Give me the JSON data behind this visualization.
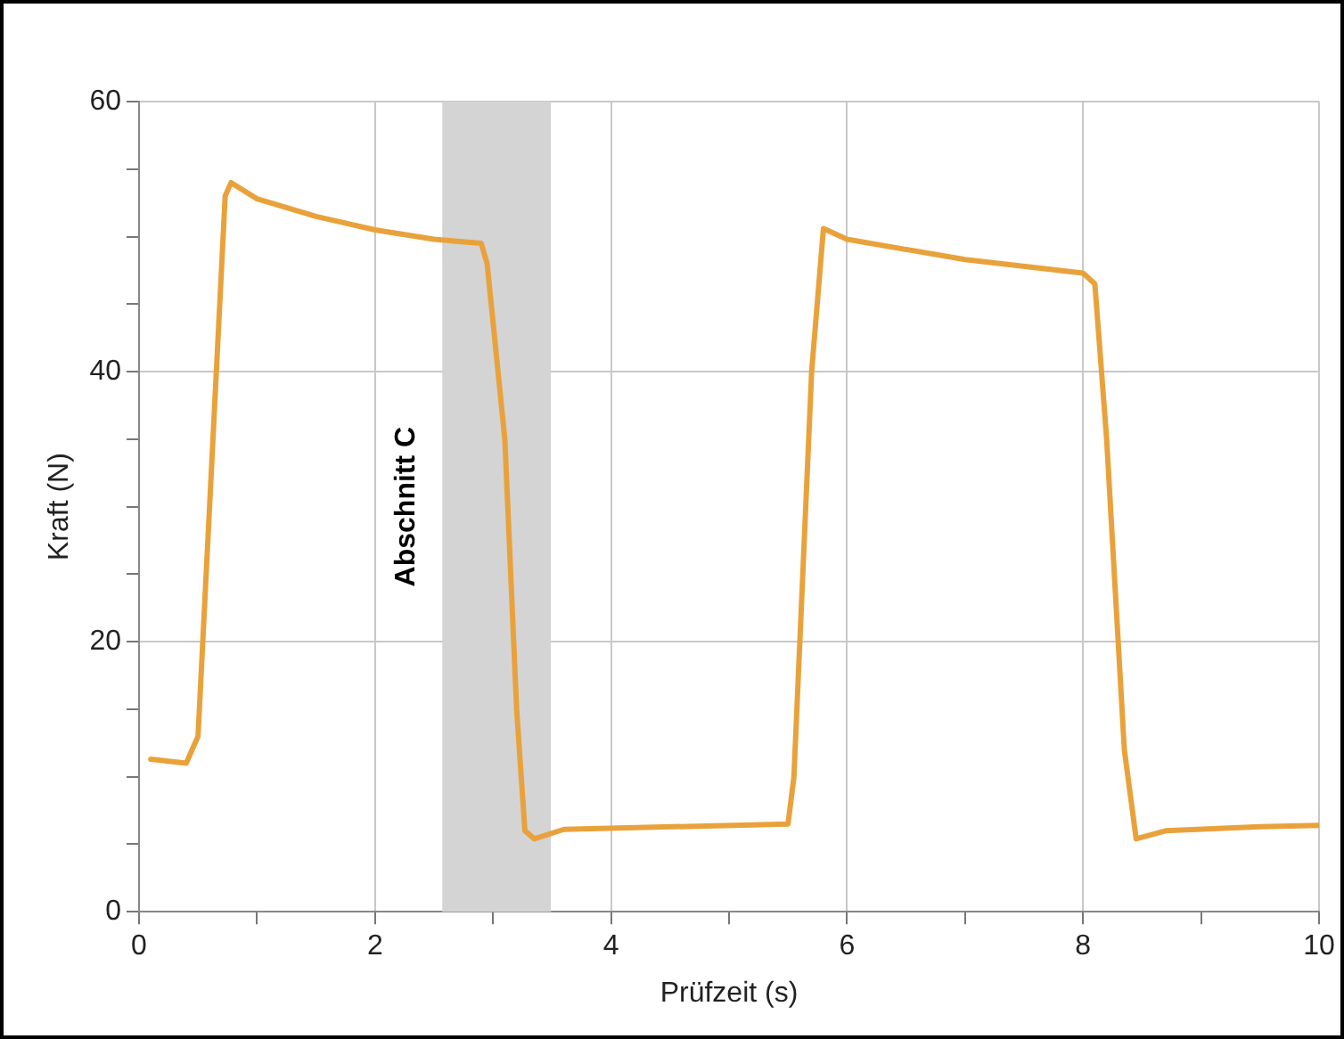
{
  "chart_data": {
    "type": "line",
    "xlabel": "Prüfzeit (s)",
    "ylabel": "Kraft (N)",
    "x": [
      0.1,
      0.4,
      0.5,
      0.73,
      0.78,
      1.0,
      1.5,
      2.0,
      2.5,
      2.9,
      2.95,
      3.1,
      3.2,
      3.27,
      3.35,
      3.6,
      5.5,
      5.55,
      5.7,
      5.8,
      6.0,
      7.0,
      8.0,
      8.1,
      8.2,
      8.35,
      8.45,
      8.7,
      9.5,
      10.0
    ],
    "series": [
      {
        "color": "#e9a23b",
        "values": [
          11.3,
          11.0,
          13,
          53,
          54,
          52.8,
          51.5,
          50.5,
          49.8,
          49.5,
          48,
          35,
          15,
          6,
          5.4,
          6.1,
          6.5,
          10,
          40,
          50.6,
          49.8,
          48.3,
          47.3,
          46.5,
          35,
          12,
          5.4,
          6.0,
          6.3,
          6.4
        ]
      }
    ],
    "xlim": [
      0,
      10
    ],
    "xticks": [
      0,
      {
        "value": 1,
        "label": null
      },
      2,
      {
        "value": 3,
        "label": null
      },
      4,
      {
        "value": 5,
        "label": null
      },
      6,
      {
        "value": 7,
        "label": null
      },
      8,
      {
        "value": 9,
        "label": null
      },
      10
    ],
    "ylim": [
      0,
      60
    ],
    "yticks": [
      0,
      {
        "value": 5,
        "label": null
      },
      {
        "value": 10,
        "label": null
      },
      {
        "value": 15,
        "label": null
      },
      20,
      {
        "value": 25,
        "label": null
      },
      {
        "value": 30,
        "label": null
      },
      {
        "value": 35,
        "label": null
      },
      40,
      {
        "value": 45,
        "label": null
      },
      {
        "value": 50,
        "label": null
      },
      {
        "value": 55,
        "label": null
      },
      60
    ],
    "bands": [
      {
        "axis": "x",
        "from": 2.57,
        "to": 3.49,
        "label": "Abschnitt C",
        "color": "#d4d4d4"
      }
    ],
    "grid": true,
    "legend": false,
    "marker": "none",
    "line_style": "solid"
  }
}
